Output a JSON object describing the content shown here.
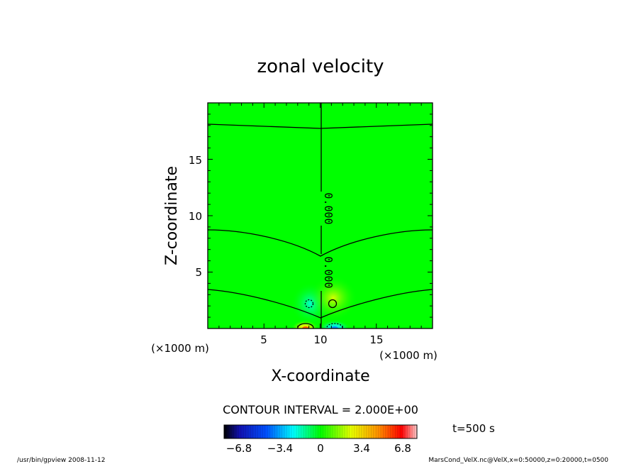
{
  "chart_data": {
    "type": "heatmap",
    "title": "zonal velocity",
    "xlabel": "X-coordinate",
    "ylabel": "Z-coordinate",
    "x_unit": "(×1000 m)",
    "z_unit": "(×1000 m)",
    "xlim": [
      0,
      20
    ],
    "ylim": [
      0,
      20
    ],
    "x_ticks": [
      5,
      10,
      15
    ],
    "y_ticks": [
      5,
      10,
      15
    ],
    "contour_interval_text": "CONTOUR INTERVAL = 2.000E+00",
    "contour_labels": [
      "0.000",
      "0.000"
    ],
    "time_label": "t=500 s",
    "colorbar": {
      "range": [
        -8,
        8
      ],
      "tick_values": [
        -6.8,
        -3.4,
        0,
        3.4,
        6.8
      ],
      "tick_labels": [
        "−6.8",
        "−3.4",
        "0",
        "3.4",
        "6.8"
      ],
      "colors": [
        "#000000",
        "#0000ff",
        "#00ffff",
        "#00ff00",
        "#ffff00",
        "#ff0000",
        "#ffffff"
      ]
    },
    "field_background_color": "#00ff00"
  },
  "footer": {
    "left": "/usr/bin/gpview   2008-11-12",
    "right": "MarsCond_VelX.nc@VelX,x=0:50000,z=0:20000,t=0500"
  }
}
